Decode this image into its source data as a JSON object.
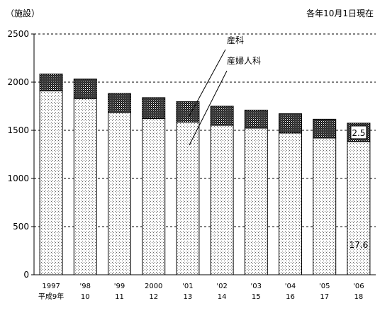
{
  "chart_data": {
    "type": "bar",
    "stacked": true,
    "unit_label": "（施設）",
    "note": "各年10月1日現在",
    "categories": [
      "1997",
      "'98",
      "'99",
      "2000",
      "'01",
      "'02",
      "'03",
      "'04",
      "'05",
      "'06"
    ],
    "categories_secondary": [
      "平成9年",
      "10",
      "11",
      "12",
      "13",
      "14",
      "15",
      "16",
      "17",
      "18"
    ],
    "series": [
      {
        "name": "産婦人科",
        "pattern": "dots",
        "values": [
          1910,
          1828,
          1685,
          1622,
          1585,
          1552,
          1522,
          1472,
          1420,
          1383
        ]
      },
      {
        "name": "産科",
        "pattern": "dense-dark",
        "values": [
          175,
          205,
          198,
          217,
          212,
          198,
          188,
          200,
          195,
          191
        ]
      }
    ],
    "y_ticks": [
      0,
      500,
      1000,
      1500,
      2000,
      2500
    ],
    "ylim": [
      0,
      2500
    ],
    "grid": "dashed",
    "annotations": [
      {
        "category_index": 9,
        "series": "産科",
        "text": "2.5"
      },
      {
        "category_index": 9,
        "series": "産婦人科",
        "text": "17.6"
      }
    ],
    "colors": {
      "axis": "#000000",
      "bar_fill": "#ffffff",
      "dark_pattern": "#2a2a2a"
    }
  }
}
